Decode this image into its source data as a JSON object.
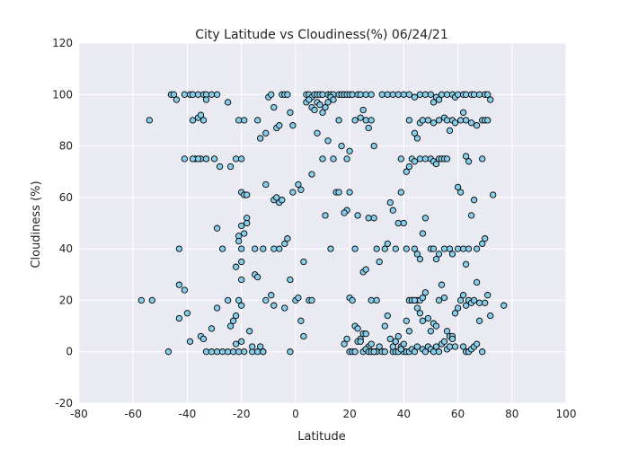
{
  "chart_data": {
    "type": "scatter",
    "title": "City Latitude vs Cloudiness(%) 06/24/21",
    "xlabel": "Latitude",
    "ylabel": "Cloudiness (%)",
    "xlim": [
      -80,
      100
    ],
    "ylim": [
      -20,
      120
    ],
    "xticks": [
      -80,
      -60,
      -40,
      -20,
      0,
      20,
      40,
      60,
      80,
      100
    ],
    "yticks": [
      -20,
      0,
      20,
      40,
      60,
      80,
      100,
      120
    ],
    "grid": true,
    "style": {
      "plot_background": "#eaeaf2",
      "grid_color": "#ffffff",
      "marker_fill": "#87ceeb",
      "marker_edge": "#000000"
    },
    "points": [
      [
        -54,
        90
      ],
      [
        -46,
        100
      ],
      [
        -45,
        100
      ],
      [
        -44,
        98
      ],
      [
        -41,
        100
      ],
      [
        -39,
        100
      ],
      [
        -38,
        100
      ],
      [
        -36,
        100
      ],
      [
        -34,
        100
      ],
      [
        -33,
        100
      ],
      [
        -31,
        100
      ],
      [
        -29,
        100
      ],
      [
        -25,
        97
      ],
      [
        -38,
        90
      ],
      [
        -36,
        91
      ],
      [
        -35,
        92
      ],
      [
        -34,
        90
      ],
      [
        -33,
        98
      ],
      [
        -37,
        75
      ],
      [
        -35,
        75
      ],
      [
        -33,
        75
      ],
      [
        -30,
        75
      ],
      [
        -28,
        72
      ],
      [
        -24,
        72
      ],
      [
        -22,
        75
      ],
      [
        -20,
        75
      ],
      [
        -21,
        90
      ],
      [
        -19,
        90
      ],
      [
        -14,
        90
      ],
      [
        -13,
        83
      ],
      [
        -11,
        85
      ],
      [
        -10,
        99
      ],
      [
        -9,
        100
      ],
      [
        -8,
        95
      ],
      [
        -7,
        87
      ],
      [
        -6,
        88
      ],
      [
        -5,
        100
      ],
      [
        -4,
        100
      ],
      [
        -3,
        100
      ],
      [
        -2,
        93
      ],
      [
        -1,
        88
      ],
      [
        -20,
        62
      ],
      [
        -19,
        61
      ],
      [
        -18,
        61
      ],
      [
        -11,
        65
      ],
      [
        -8,
        59
      ],
      [
        -7,
        60
      ],
      [
        -6,
        58
      ],
      [
        -5,
        59
      ],
      [
        -1,
        62
      ],
      [
        1,
        65
      ],
      [
        2,
        63
      ],
      [
        -18,
        52
      ],
      [
        -18,
        50
      ],
      [
        -20,
        49
      ],
      [
        -19,
        46
      ],
      [
        -21,
        45
      ],
      [
        -21,
        43
      ],
      [
        -20,
        40
      ],
      [
        -15,
        40
      ],
      [
        -12,
        40
      ],
      [
        -8,
        40
      ],
      [
        -6,
        40
      ],
      [
        -4,
        42
      ],
      [
        -3,
        44
      ],
      [
        -20,
        35
      ],
      [
        -22,
        33
      ],
      [
        -20,
        28
      ],
      [
        -15,
        30
      ],
      [
        -14,
        29
      ],
      [
        -11,
        20
      ],
      [
        -9,
        22
      ],
      [
        -8,
        18
      ],
      [
        -4,
        17
      ],
      [
        -2,
        28
      ],
      [
        0,
        20
      ],
      [
        1,
        21
      ],
      [
        3,
        35
      ],
      [
        -43,
        40
      ],
      [
        -43,
        26
      ],
      [
        -41,
        24
      ],
      [
        -43,
        13
      ],
      [
        -40,
        15
      ],
      [
        -35,
        6
      ],
      [
        -34,
        5
      ],
      [
        -31,
        9
      ],
      [
        -39,
        4
      ],
      [
        -29,
        17
      ],
      [
        -25,
        20
      ],
      [
        -24,
        10
      ],
      [
        -23,
        12
      ],
      [
        -22,
        14
      ],
      [
        -20,
        18
      ],
      [
        -33,
        0
      ],
      [
        -31,
        0
      ],
      [
        -29,
        0
      ],
      [
        -27,
        0
      ],
      [
        -25,
        0
      ],
      [
        -23,
        0
      ],
      [
        -21,
        0
      ],
      [
        -19,
        0
      ],
      [
        -16,
        0
      ],
      [
        -14,
        0
      ],
      [
        -12,
        0
      ],
      [
        -47,
        0
      ],
      [
        -22,
        3
      ],
      [
        -20,
        4
      ],
      [
        -21,
        20
      ],
      [
        -17,
        8
      ],
      [
        -16,
        2
      ],
      [
        -13,
        2
      ],
      [
        -12,
        0
      ],
      [
        -2,
        0
      ],
      [
        -57,
        20
      ],
      [
        -53,
        20
      ],
      [
        -27,
        40
      ],
      [
        -29,
        48
      ],
      [
        -33,
        75
      ],
      [
        -36,
        75
      ],
      [
        -38,
        75
      ],
      [
        -41,
        75
      ],
      [
        2,
        12
      ],
      [
        3,
        6
      ],
      [
        5,
        20
      ],
      [
        6,
        20
      ],
      [
        4,
        100
      ],
      [
        5,
        100
      ],
      [
        6,
        99
      ],
      [
        7,
        100
      ],
      [
        8,
        100
      ],
      [
        9,
        100
      ],
      [
        10,
        100
      ],
      [
        12,
        100
      ],
      [
        13,
        100
      ],
      [
        14,
        100
      ],
      [
        16,
        100
      ],
      [
        17,
        100
      ],
      [
        18,
        100
      ],
      [
        19,
        100
      ],
      [
        20,
        100
      ],
      [
        21,
        100
      ],
      [
        23,
        100
      ],
      [
        24,
        100
      ],
      [
        26,
        100
      ],
      [
        28,
        100
      ],
      [
        4,
        97
      ],
      [
        5,
        98
      ],
      [
        6,
        95
      ],
      [
        7,
        94
      ],
      [
        8,
        97
      ],
      [
        9,
        96
      ],
      [
        10,
        93
      ],
      [
        11,
        95
      ],
      [
        12,
        97
      ],
      [
        13,
        99
      ],
      [
        14,
        98
      ],
      [
        16,
        90
      ],
      [
        17,
        80
      ],
      [
        19,
        75
      ],
      [
        20,
        78
      ],
      [
        22,
        90
      ],
      [
        24,
        91
      ],
      [
        25,
        94
      ],
      [
        26,
        90
      ],
      [
        27,
        87
      ],
      [
        28,
        90
      ],
      [
        29,
        80
      ],
      [
        11,
        53
      ],
      [
        13,
        40
      ],
      [
        15,
        62
      ],
      [
        19,
        55
      ],
      [
        20,
        62
      ],
      [
        22,
        40
      ],
      [
        23,
        53
      ],
      [
        25,
        31
      ],
      [
        26,
        32
      ],
      [
        27,
        52
      ],
      [
        29,
        52
      ],
      [
        30,
        40
      ],
      [
        31,
        35
      ],
      [
        6,
        69
      ],
      [
        8,
        85
      ],
      [
        10,
        75
      ],
      [
        12,
        82
      ],
      [
        14,
        75
      ],
      [
        16,
        62
      ],
      [
        18,
        54
      ],
      [
        20,
        21
      ],
      [
        21,
        20
      ],
      [
        22,
        10
      ],
      [
        23,
        9
      ],
      [
        24,
        5
      ],
      [
        25,
        7
      ],
      [
        26,
        7
      ],
      [
        27,
        2
      ],
      [
        28,
        3
      ],
      [
        29,
        0
      ],
      [
        30,
        0
      ],
      [
        18,
        3
      ],
      [
        19,
        5
      ],
      [
        20,
        0
      ],
      [
        21,
        0
      ],
      [
        22,
        0
      ],
      [
        23,
        4
      ],
      [
        24,
        4
      ],
      [
        25,
        0
      ],
      [
        26,
        1
      ],
      [
        27,
        0
      ],
      [
        28,
        0
      ],
      [
        29,
        0
      ],
      [
        31,
        2
      ],
      [
        32,
        0
      ],
      [
        33,
        0
      ],
      [
        28,
        20
      ],
      [
        30,
        20
      ],
      [
        33,
        40
      ],
      [
        34,
        42
      ],
      [
        35,
        58
      ],
      [
        36,
        55
      ],
      [
        37,
        40
      ],
      [
        38,
        50
      ],
      [
        39,
        62
      ],
      [
        40,
        50
      ],
      [
        41,
        40
      ],
      [
        42,
        20
      ],
      [
        43,
        20
      ],
      [
        44,
        20
      ],
      [
        45,
        20
      ],
      [
        46,
        20
      ],
      [
        47,
        21
      ],
      [
        48,
        23
      ],
      [
        32,
        100
      ],
      [
        34,
        100
      ],
      [
        36,
        100
      ],
      [
        38,
        100
      ],
      [
        40,
        100
      ],
      [
        42,
        100
      ],
      [
        44,
        99
      ],
      [
        46,
        100
      ],
      [
        48,
        100
      ],
      [
        50,
        100
      ],
      [
        51,
        97
      ],
      [
        52,
        99
      ],
      [
        53,
        98
      ],
      [
        54,
        100
      ],
      [
        56,
        100
      ],
      [
        58,
        100
      ],
      [
        59,
        99
      ],
      [
        60,
        100
      ],
      [
        62,
        100
      ],
      [
        63,
        100
      ],
      [
        65,
        100
      ],
      [
        66,
        100
      ],
      [
        68,
        100
      ],
      [
        70,
        100
      ],
      [
        71,
        100
      ],
      [
        72,
        98
      ],
      [
        42,
        90
      ],
      [
        44,
        85
      ],
      [
        45,
        83
      ],
      [
        46,
        89
      ],
      [
        47,
        90
      ],
      [
        49,
        90
      ],
      [
        51,
        89
      ],
      [
        53,
        90
      ],
      [
        55,
        91
      ],
      [
        56,
        90
      ],
      [
        57,
        86
      ],
      [
        58,
        90
      ],
      [
        59,
        89
      ],
      [
        61,
        90
      ],
      [
        62,
        93
      ],
      [
        63,
        90
      ],
      [
        65,
        89
      ],
      [
        67,
        88
      ],
      [
        69,
        90
      ],
      [
        70,
        90
      ],
      [
        71,
        90
      ],
      [
        39,
        75
      ],
      [
        41,
        70
      ],
      [
        42,
        72
      ],
      [
        43,
        75
      ],
      [
        44,
        74
      ],
      [
        46,
        75
      ],
      [
        48,
        75
      ],
      [
        50,
        75
      ],
      [
        51,
        74
      ],
      [
        52,
        73
      ],
      [
        53,
        75
      ],
      [
        54,
        75
      ],
      [
        55,
        75
      ],
      [
        56,
        75
      ],
      [
        60,
        64
      ],
      [
        61,
        62
      ],
      [
        63,
        76
      ],
      [
        64,
        74
      ],
      [
        69,
        75
      ],
      [
        44,
        40
      ],
      [
        45,
        38
      ],
      [
        46,
        36
      ],
      [
        47,
        46
      ],
      [
        48,
        52
      ],
      [
        50,
        40
      ],
      [
        51,
        40
      ],
      [
        52,
        36
      ],
      [
        53,
        38
      ],
      [
        55,
        40
      ],
      [
        57,
        40
      ],
      [
        58,
        38
      ],
      [
        60,
        40
      ],
      [
        62,
        40
      ],
      [
        63,
        34
      ],
      [
        64,
        40
      ],
      [
        65,
        53
      ],
      [
        66,
        59
      ],
      [
        67,
        40
      ],
      [
        68,
        19
      ],
      [
        69,
        42
      ],
      [
        70,
        44
      ],
      [
        71,
        22
      ],
      [
        73,
        61
      ],
      [
        77,
        18
      ],
      [
        47,
        12
      ],
      [
        49,
        13
      ],
      [
        50,
        8
      ],
      [
        51,
        11
      ],
      [
        52,
        10
      ],
      [
        53,
        20
      ],
      [
        54,
        26
      ],
      [
        55,
        21
      ],
      [
        56,
        8
      ],
      [
        57,
        6
      ],
      [
        58,
        6
      ],
      [
        59,
        15
      ],
      [
        60,
        17
      ],
      [
        61,
        20
      ],
      [
        62,
        22
      ],
      [
        63,
        18
      ],
      [
        64,
        20
      ],
      [
        65,
        19
      ],
      [
        66,
        20
      ],
      [
        67,
        27
      ],
      [
        68,
        12
      ],
      [
        69,
        0
      ],
      [
        70,
        19
      ],
      [
        72,
        14
      ],
      [
        36,
        0
      ],
      [
        37,
        0
      ],
      [
        38,
        0
      ],
      [
        39,
        2
      ],
      [
        40,
        0
      ],
      [
        41,
        0
      ],
      [
        42,
        0
      ],
      [
        43,
        1
      ],
      [
        44,
        0
      ],
      [
        45,
        2
      ],
      [
        47,
        1
      ],
      [
        48,
        0
      ],
      [
        49,
        2
      ],
      [
        50,
        1
      ],
      [
        51,
        0
      ],
      [
        52,
        2
      ],
      [
        53,
        0
      ],
      [
        54,
        3
      ],
      [
        55,
        4
      ],
      [
        56,
        1
      ],
      [
        57,
        2
      ],
      [
        58,
        5
      ],
      [
        59,
        2
      ],
      [
        62,
        2
      ],
      [
        63,
        0
      ],
      [
        64,
        0
      ],
      [
        65,
        1
      ],
      [
        66,
        2
      ],
      [
        67,
        3
      ],
      [
        33,
        10
      ],
      [
        34,
        14
      ],
      [
        35,
        5
      ],
      [
        36,
        2
      ],
      [
        37,
        4
      ],
      [
        38,
        6
      ],
      [
        39,
        1
      ],
      [
        40,
        3
      ],
      [
        41,
        12
      ],
      [
        42,
        8
      ],
      [
        43,
        20
      ],
      [
        44,
        20
      ],
      [
        45,
        17
      ],
      [
        46,
        15
      ]
    ]
  }
}
